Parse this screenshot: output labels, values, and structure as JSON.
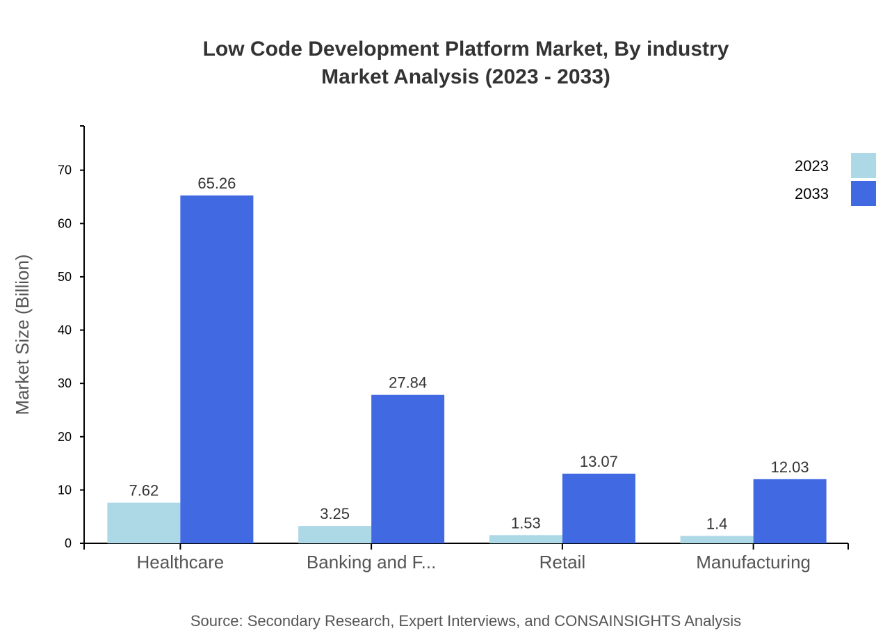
{
  "chart_data": {
    "type": "bar",
    "title": "Low Code Development Platform Market, By industry",
    "subtitle": "Market Analysis (2023 - 2033)",
    "xlabel": "",
    "ylabel": "Market Size (Billion)",
    "categories": [
      "Healthcare",
      "Banking and F...",
      "Retail",
      "Manufacturing"
    ],
    "series": [
      {
        "name": "2023",
        "color": "#add8e6",
        "values": [
          7.62,
          3.25,
          1.53,
          1.4
        ]
      },
      {
        "name": "2033",
        "color": "#4169e1",
        "values": [
          65.26,
          27.84,
          13.07,
          12.03
        ]
      }
    ],
    "yticks": [
      0,
      10,
      20,
      30,
      40,
      50,
      60,
      70
    ],
    "ylim": [
      0,
      78.31
    ],
    "grid": false,
    "legend_position": "top-right",
    "source": "Source: Secondary Research, Expert Interviews, and CONSAINSIGHTS Analysis"
  }
}
